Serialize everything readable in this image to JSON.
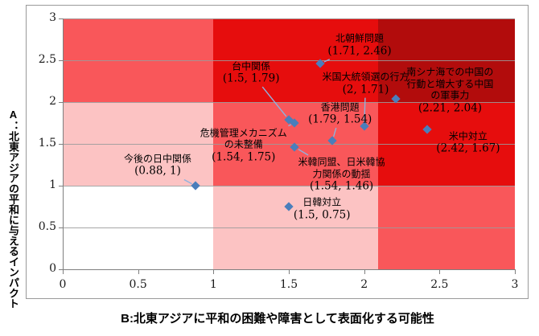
{
  "chart_data": {
    "type": "scatter",
    "title": "",
    "xlabel": "B:北東アジアに平和の困難や障害として表面化する可能性",
    "ylabel": "A：北東アジアの平和に与えるインパクト",
    "xlim": [
      0,
      3
    ],
    "ylim": [
      0,
      3
    ],
    "xticks": [
      "0",
      "0.5",
      "1",
      "1.5",
      "2",
      "2.5",
      "3"
    ],
    "yticks": [
      "0",
      "0.5",
      "1",
      "1.5",
      "2",
      "2.5",
      "3"
    ],
    "grid": true,
    "legend": false,
    "marker_shape": "diamond",
    "marker_color": "#4A7EBB",
    "leader_color": "#8FB2DE",
    "grid_color": "#9B9B9B",
    "axis_color": "#7F7F7F",
    "points": [
      {
        "name": "北朝鮮問題",
        "x": 1.71,
        "y": 2.46,
        "label_lines": [
          "北朝鮮問題",
          "(1.71, 2.46)"
        ],
        "label_at": [
          1.97,
          2.68
        ],
        "leader": true
      },
      {
        "name": "台中関係",
        "x": 1.5,
        "y": 1.79,
        "label_lines": [
          "台中関係",
          "(1.5, 1.79)"
        ],
        "label_at": [
          1.25,
          2.35
        ],
        "leader": true
      },
      {
        "name": "米国大統領選の行方",
        "x": 2,
        "y": 1.71,
        "label_lines": [
          "米国大統領選の行方",
          "(2, 1.71)"
        ],
        "label_at": [
          2.01,
          2.22
        ],
        "leader": true
      },
      {
        "name": "南シナ海での中国の行動と増大する中国の軍事力",
        "x": 2.21,
        "y": 2.04,
        "label_lines": [
          "南シナ海での中国の",
          "行動と増大する中国",
          "の軍事力",
          "(2.21, 2.04)"
        ],
        "label_at": [
          2.57,
          2.14
        ],
        "leader": false
      },
      {
        "name": "香港問題",
        "x": 1.79,
        "y": 1.54,
        "label_lines": [
          "香港問題",
          "(1.79, 1.54)"
        ],
        "label_at": [
          1.84,
          1.86
        ],
        "leader": true
      },
      {
        "name": "米中対立",
        "x": 2.42,
        "y": 1.67,
        "label_lines": [
          "米中対立",
          "(2.42, 1.67)"
        ],
        "label_at": [
          2.69,
          1.51
        ],
        "leader": false
      },
      {
        "name": "危機管理メカニズムの未整備",
        "x": 1.54,
        "y": 1.75,
        "label_lines": [
          "危機管理メカニズム",
          "の未整備",
          "(1.54, 1.75)"
        ],
        "label_at": [
          1.2,
          1.48
        ],
        "leader": true
      },
      {
        "name": "米韓同盟、日米韓協力関係の動揺",
        "x": 1.54,
        "y": 1.46,
        "label_lines": [
          "米韓同盟、日米韓協",
          "力関係の動揺",
          "(1.54, 1.46)"
        ],
        "label_at": [
          1.85,
          1.13
        ],
        "leader": true
      },
      {
        "name": "今後の日中関係",
        "x": 0.88,
        "y": 1,
        "label_lines": [
          "今後の日中関係",
          "(0.88, 1)"
        ],
        "label_at": [
          0.63,
          1.24
        ],
        "leader": true
      },
      {
        "name": "日韓対立",
        "x": 1.5,
        "y": 0.75,
        "label_lines": [
          "日韓対立",
          "(1.5, 0.75)"
        ],
        "label_at": [
          1.72,
          0.72
        ],
        "leader": false
      }
    ],
    "regions": [
      {
        "x": [
          0,
          1
        ],
        "y": [
          0,
          1
        ],
        "color": "#FFFFFF"
      },
      {
        "x": [
          0,
          1
        ],
        "y": [
          1,
          2
        ],
        "color": "#FCC3C3"
      },
      {
        "x": [
          0,
          1
        ],
        "y": [
          2,
          3
        ],
        "color": "#F9575A"
      },
      {
        "x": [
          1,
          2.09
        ],
        "y": [
          0,
          1
        ],
        "color": "#FCC3C3"
      },
      {
        "x": [
          1,
          2.09
        ],
        "y": [
          1,
          2
        ],
        "color": "#F9575A"
      },
      {
        "x": [
          1,
          2.09
        ],
        "y": [
          2,
          3
        ],
        "color": "#E60D0D"
      },
      {
        "x": [
          2.09,
          3
        ],
        "y": [
          0,
          1
        ],
        "color": "#F9575A"
      },
      {
        "x": [
          2.09,
          3
        ],
        "y": [
          1,
          2
        ],
        "color": "#E60D0D"
      },
      {
        "x": [
          2.09,
          3
        ],
        "y": [
          2,
          3
        ],
        "color": "#B20C0C"
      }
    ]
  }
}
